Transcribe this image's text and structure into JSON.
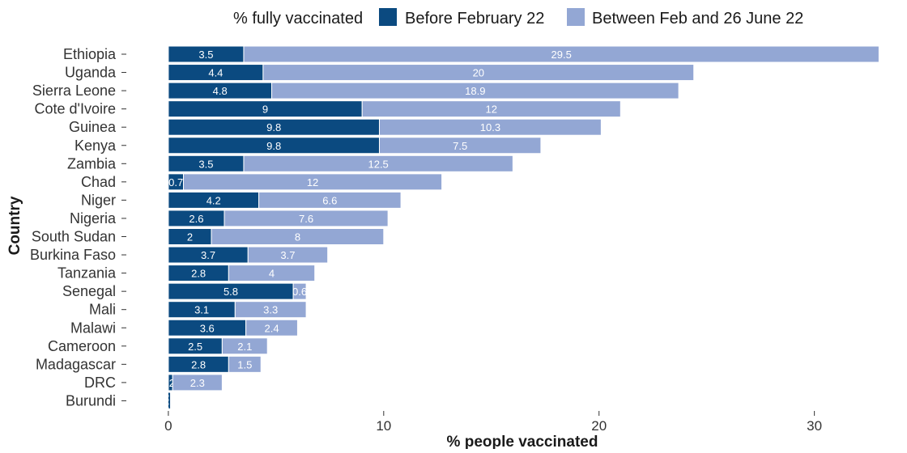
{
  "chart_data": {
    "type": "bar",
    "orientation": "horizontal",
    "stacked": true,
    "xlabel": "% people vaccinated",
    "ylabel": "Country",
    "xlim": [
      -1.5,
      34
    ],
    "xticks": [
      0,
      10,
      20,
      30
    ],
    "grid": false,
    "legend": {
      "title": "% fully vaccinated",
      "placement": "top",
      "entries": [
        "Before February 22",
        "Between Feb and 26 June 22"
      ]
    },
    "categories": [
      "Ethiopia",
      "Uganda",
      "Sierra Leone",
      "Cote d'Ivoire",
      "Guinea",
      "Kenya",
      "Zambia",
      "Chad",
      "Niger",
      "Nigeria",
      "South Sudan",
      "Burkina Faso",
      "Tanzania",
      "Senegal",
      "Mali",
      "Malawi",
      "Cameroon",
      "Madagascar",
      "DRC",
      "Burundi"
    ],
    "series": [
      {
        "name": "Before February 22",
        "color": "#0b4a80",
        "values": [
          3.5,
          4.4,
          4.8,
          9,
          9.8,
          9.8,
          3.5,
          0.7,
          4.2,
          2.6,
          2,
          3.7,
          2.8,
          5.8,
          3.1,
          3.6,
          2.5,
          2.8,
          0.2,
          0.1
        ],
        "labels": [
          "3.5",
          "4.4",
          "4.8",
          "9",
          "9.8",
          "9.8",
          "3.5",
          "0.7",
          "4.2",
          "2.6",
          "2",
          "3.7",
          "2.8",
          "5.8",
          "3.1",
          "3.6",
          "2.5",
          "2.8",
          ".2",
          ""
        ]
      },
      {
        "name": "Between Feb and 26 June 22",
        "color": "#93a7d4",
        "values": [
          29.5,
          20,
          18.9,
          12,
          10.3,
          7.5,
          12.5,
          12,
          6.6,
          7.6,
          8,
          3.7,
          4,
          0.6,
          3.3,
          2.4,
          2.1,
          1.5,
          2.3,
          0
        ],
        "labels": [
          "29.5",
          "20",
          "18.9",
          "12",
          "10.3",
          "7.5",
          "12.5",
          "12",
          "6.6",
          "7.6",
          "8",
          "3.7",
          "4",
          "0.6",
          "3.3",
          "2.4",
          "2.1",
          "1.5",
          "2.3",
          ""
        ]
      }
    ]
  }
}
